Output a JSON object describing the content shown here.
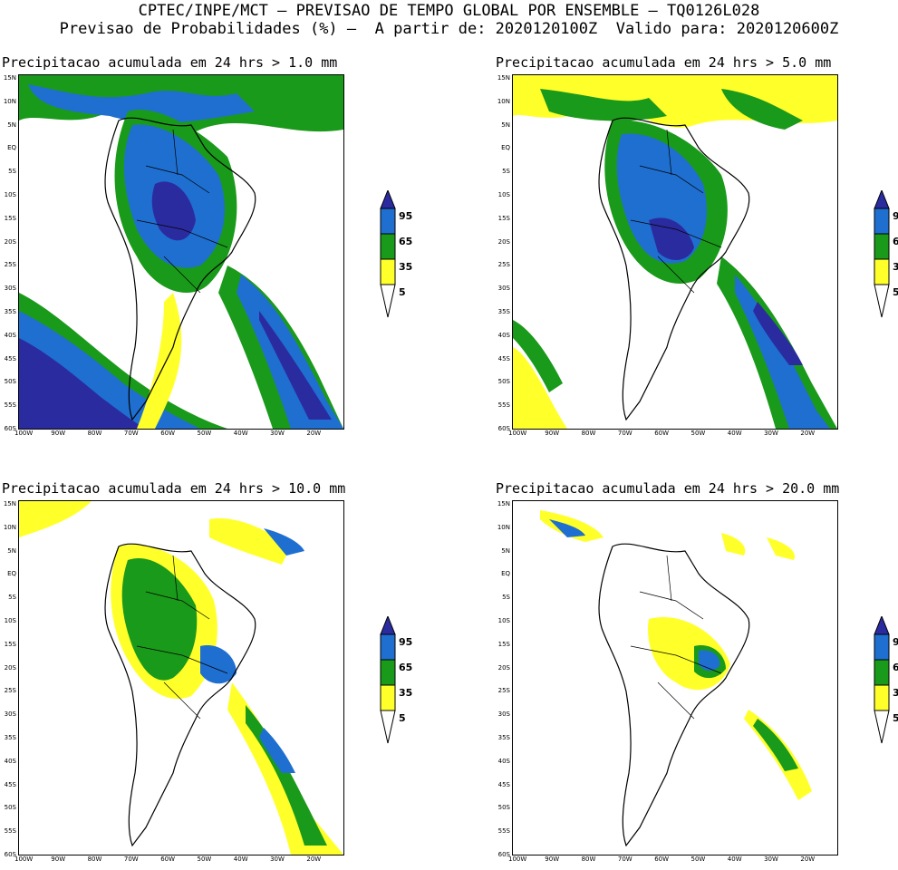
{
  "header": {
    "line1": "CPTEC/INPE/MCT – PREVISAO DE TEMPO GLOBAL POR ENSEMBLE – TQ0126L028",
    "line2": "Previsao de Probabilidades (%) –  A partir de: 2020120100Z  Valido para: 2020120600Z"
  },
  "panels": [
    {
      "title": "Precipitacao acumulada em 24 hrs > 1.0 mm"
    },
    {
      "title": "Precipitacao acumulada em 24 hrs > 5.0 mm"
    },
    {
      "title": "Precipitacao acumulada em 24 hrs > 10.0 mm"
    },
    {
      "title": "Precipitacao acumulada em 24 hrs > 20.0 mm"
    }
  ],
  "lat_labels": [
    "15N",
    "10N",
    "5N",
    "EQ",
    "5S",
    "10S",
    "15S",
    "20S",
    "25S",
    "30S",
    "35S",
    "40S",
    "45S",
    "50S",
    "55S",
    "60S"
  ],
  "lon_labels": [
    "100W",
    "90W",
    "80W",
    "70W",
    "60W",
    "50W",
    "40W",
    "30W",
    "20W"
  ],
  "legend": {
    "levels": [
      "95",
      "65",
      "35",
      "5"
    ],
    "colors": {
      "c95": "#2b2ba0",
      "c65": "#1f6fd0",
      "c35": "#1a9a1a",
      "c5": "#ffff2a",
      "base": "#ffffff"
    }
  }
}
